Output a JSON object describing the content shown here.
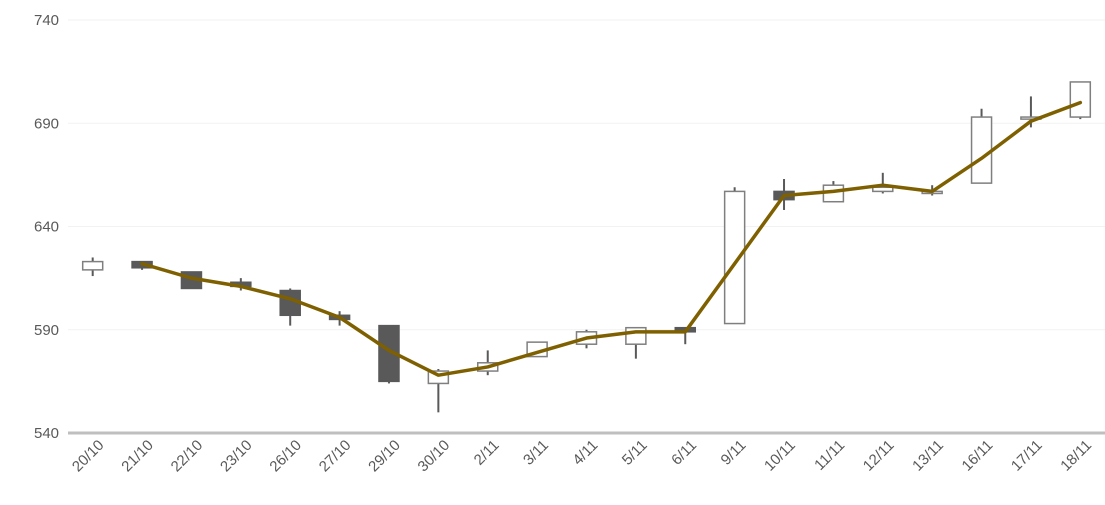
{
  "chart_data": {
    "type": "candlestick",
    "title": "",
    "xlabel": "",
    "ylabel": "",
    "ylim": [
      540,
      740
    ],
    "yticks": [
      540,
      590,
      640,
      690,
      740
    ],
    "grid": true,
    "legend": "none",
    "categories": [
      "20/10",
      "21/10",
      "22/10",
      "23/10",
      "26/10",
      "27/10",
      "29/10",
      "30/10",
      "2/11",
      "3/11",
      "4/11",
      "5/11",
      "6/11",
      "9/11",
      "10/11",
      "11/11",
      "12/11",
      "13/11",
      "16/11",
      "17/11",
      "18/11"
    ],
    "ohlc": [
      {
        "open": 619,
        "high": 625,
        "low": 616,
        "close": 623
      },
      {
        "open": 623,
        "high": 623,
        "low": 619,
        "close": 620
      },
      {
        "open": 618,
        "high": 618,
        "low": 610,
        "close": 610
      },
      {
        "open": 613,
        "high": 615,
        "low": 609,
        "close": 611
      },
      {
        "open": 609,
        "high": 610,
        "low": 592,
        "close": 597
      },
      {
        "open": 597,
        "high": 599,
        "low": 592,
        "close": 595
      },
      {
        "open": 592,
        "high": 592,
        "low": 564,
        "close": 565
      },
      {
        "open": 564,
        "high": 571,
        "low": 550,
        "close": 570
      },
      {
        "open": 570,
        "high": 580,
        "low": 568,
        "close": 574
      },
      {
        "open": 577,
        "high": 584,
        "low": 577,
        "close": 584
      },
      {
        "open": 583,
        "high": 590,
        "low": 581,
        "close": 589
      },
      {
        "open": 583,
        "high": 591,
        "low": 576,
        "close": 591
      },
      {
        "open": 591,
        "high": 591,
        "low": 583,
        "close": 589
      },
      {
        "open": 593,
        "high": 659,
        "low": 593,
        "close": 657
      },
      {
        "open": 657,
        "high": 663,
        "low": 648,
        "close": 653
      },
      {
        "open": 652,
        "high": 662,
        "low": 652,
        "close": 660
      },
      {
        "open": 657,
        "high": 666,
        "low": 656,
        "close": 659
      },
      {
        "open": 656,
        "high": 660,
        "low": 655,
        "close": 657
      },
      {
        "open": 661,
        "high": 697,
        "low": 661,
        "close": 693
      },
      {
        "open": 692,
        "high": 703,
        "low": 688,
        "close": 693
      },
      {
        "open": 693,
        "high": 710,
        "low": 692,
        "close": 710
      }
    ],
    "line": {
      "values": [
        null,
        622,
        615,
        611,
        605,
        596,
        580,
        568,
        572,
        579,
        586,
        589,
        589,
        622,
        655,
        657,
        660,
        657,
        673,
        691,
        700
      ]
    },
    "colors": {
      "up_fill": "#ffffff",
      "up_stroke": "#7f7f7f",
      "down_fill": "#595959",
      "down_stroke": "#595959",
      "wick": "#595959",
      "line": "#7f6000",
      "grid": "#f2f2f2",
      "axis": "#bfbfbf",
      "text": "#595959"
    }
  }
}
